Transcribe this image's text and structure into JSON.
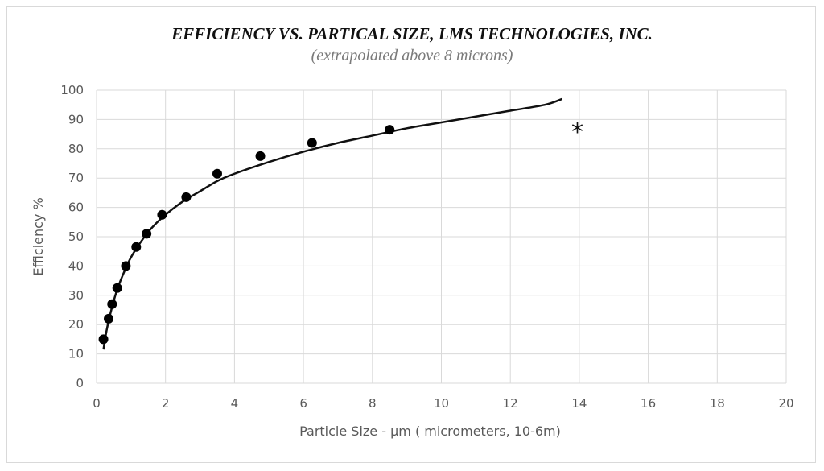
{
  "chart_data": {
    "type": "scatter",
    "title": "EFFICIENCY VS. PARTICAL SIZE, LMS TECHNOLOGIES, INC.",
    "subtitle": "(extrapolated above 8 microns)",
    "xlabel": "Particle Size - µm ( micrometers, 10-6m)",
    "ylabel": "Efficiency  %",
    "xlim": [
      0,
      20
    ],
    "ylim": [
      0,
      100
    ],
    "x_ticks": [
      0,
      2,
      4,
      6,
      8,
      10,
      12,
      14,
      16,
      18,
      20
    ],
    "y_ticks": [
      0,
      10,
      20,
      30,
      40,
      50,
      60,
      70,
      80,
      90,
      100
    ],
    "grid": true,
    "annotation": "*",
    "series": [
      {
        "marker": "circle",
        "x": [
          0.2,
          0.35,
          0.45,
          0.6,
          0.85,
          1.15,
          1.45,
          1.9,
          2.6,
          3.5,
          4.75,
          6.25,
          8.5
        ],
        "y": [
          15,
          22,
          27,
          32.5,
          40,
          46.5,
          51,
          57.5,
          63.5,
          71.5,
          77.5,
          82,
          86.5
        ]
      },
      {
        "style": "line",
        "x": [
          0.2,
          0.3,
          0.45,
          0.6,
          0.8,
          1.0,
          1.3,
          1.6,
          2.0,
          2.5,
          3.0,
          3.5,
          4.0,
          5.0,
          6.0,
          7.0,
          8.0,
          9.0,
          10.0,
          11.0,
          12.0,
          13.0,
          13.5
        ],
        "y": [
          11.5,
          18.5,
          26,
          32,
          38,
          43,
          48.5,
          53,
          57.5,
          62,
          65.5,
          69,
          71.5,
          75.5,
          79,
          82,
          84.5,
          87,
          89,
          91,
          93,
          95,
          97
        ]
      }
    ]
  }
}
